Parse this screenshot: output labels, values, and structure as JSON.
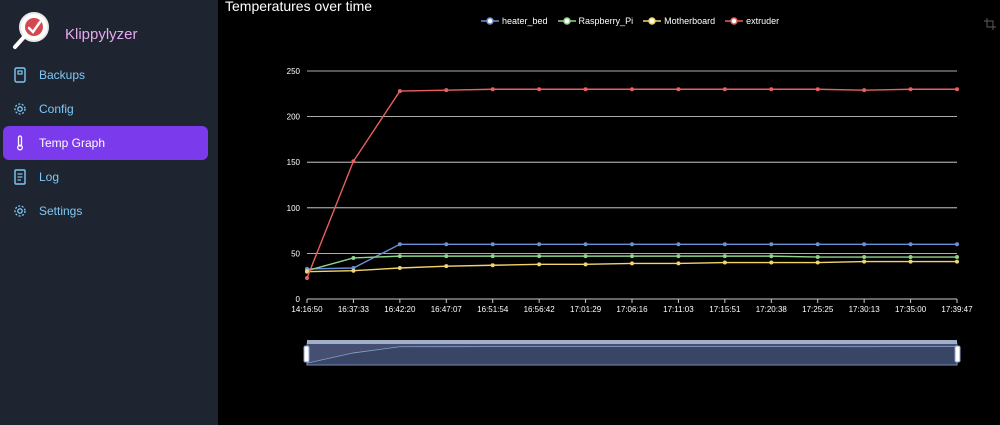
{
  "app": {
    "name": "Klippylyzer"
  },
  "sidebar": {
    "items": [
      {
        "label": "Backups",
        "icon": "archive-icon",
        "active": false
      },
      {
        "label": "Config",
        "icon": "gear-icon",
        "active": false
      },
      {
        "label": "Temp Graph",
        "icon": "thermometer-icon",
        "active": true
      },
      {
        "label": "Log",
        "icon": "document-icon",
        "active": false
      },
      {
        "label": "Settings",
        "icon": "gear-icon",
        "active": false
      }
    ]
  },
  "colors": {
    "accent": "#7c3aed",
    "sidebar_bg": "#1f2530",
    "nav_text": "#7fc8f5",
    "brand_text": "#e7a8f2"
  },
  "chart_data": {
    "type": "line",
    "title": "Temperatures over time",
    "legend_position": "top-center",
    "grid": true,
    "ylim": [
      0,
      250
    ],
    "yticks": [
      0,
      50,
      100,
      150,
      200,
      250
    ],
    "categories": [
      "14:16:50",
      "16:37:33",
      "16:42:20",
      "16:47:07",
      "16:51:54",
      "16:56:42",
      "17:01:29",
      "17:06:16",
      "17:11:03",
      "17:15:51",
      "17:20:38",
      "17:25:25",
      "17:30:13",
      "17:35:00",
      "17:39:47"
    ],
    "series": [
      {
        "name": "heater_bed",
        "color": "#6d8fd6",
        "values": [
          33,
          34,
          60,
          60,
          60,
          60,
          60,
          60,
          60,
          60,
          60,
          60,
          60,
          60,
          60
        ]
      },
      {
        "name": "Raspberry_Pi",
        "color": "#8fd48a",
        "values": [
          31,
          45,
          47,
          47,
          47,
          47,
          47,
          47,
          47,
          47,
          47,
          46,
          46,
          46,
          46
        ]
      },
      {
        "name": "Motherboard",
        "color": "#f1d56a",
        "values": [
          30,
          31,
          34,
          36,
          37,
          38,
          38,
          39,
          39,
          40,
          40,
          40,
          41,
          41,
          41
        ]
      },
      {
        "name": "extruder",
        "color": "#e86060",
        "values": [
          23,
          151,
          228,
          229,
          230,
          230,
          230,
          230,
          230,
          230,
          230,
          230,
          229,
          230,
          230
        ]
      }
    ],
    "zoom_slider": {
      "start_percent": 0,
      "end_percent": 100
    }
  }
}
